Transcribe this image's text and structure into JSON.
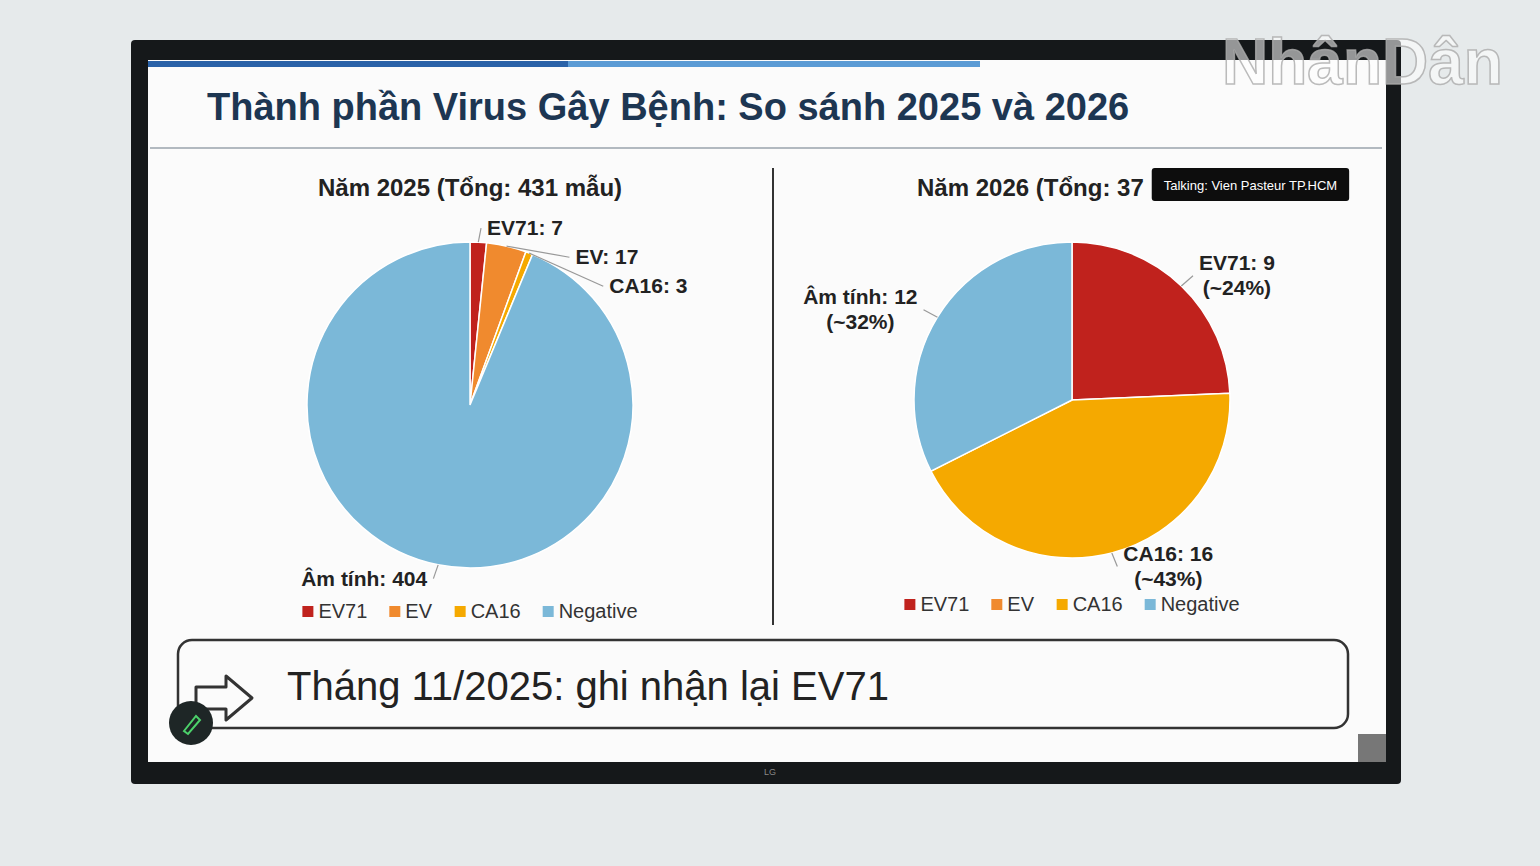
{
  "slide": {
    "title": "Thành phần Virus Gây Bệnh: So sánh 2025 và 2026",
    "footer": "Tháng 11/2025: ghi nhận lại EV71",
    "overlay": "Talking: Vien Pasteur TP.HCM",
    "watermark": "NhânDân",
    "brand": "LG"
  },
  "chart_data": [
    {
      "type": "pie",
      "title": "Năm 2025 (Tổng: 431 mẫu)",
      "categories": [
        "EV71",
        "EV",
        "CA16",
        "Negative"
      ],
      "values": [
        7,
        17,
        3,
        404
      ],
      "value_labels": [
        "EV71: 7",
        "EV: 17",
        "CA16: 3",
        "Âm tính: 404"
      ],
      "colors": [
        "#c0221d",
        "#f08a2e",
        "#f5a900",
        "#7bb8d8"
      ],
      "data_labels": true,
      "legend": "bottom"
    },
    {
      "type": "pie",
      "title": "Năm 2026 (Tổng: 37",
      "categories": [
        "EV71",
        "EV",
        "CA16",
        "Negative"
      ],
      "values": [
        9,
        0,
        16,
        12
      ],
      "value_labels": [
        "EV71: 9 (~24%)",
        null,
        "CA16: 16 (~43%)",
        "Âm tính: 12 (~32%)"
      ],
      "colors": [
        "#c0221d",
        "#f08a2e",
        "#f5a900",
        "#7bb8d8"
      ],
      "data_labels": true,
      "legend": "bottom"
    }
  ]
}
